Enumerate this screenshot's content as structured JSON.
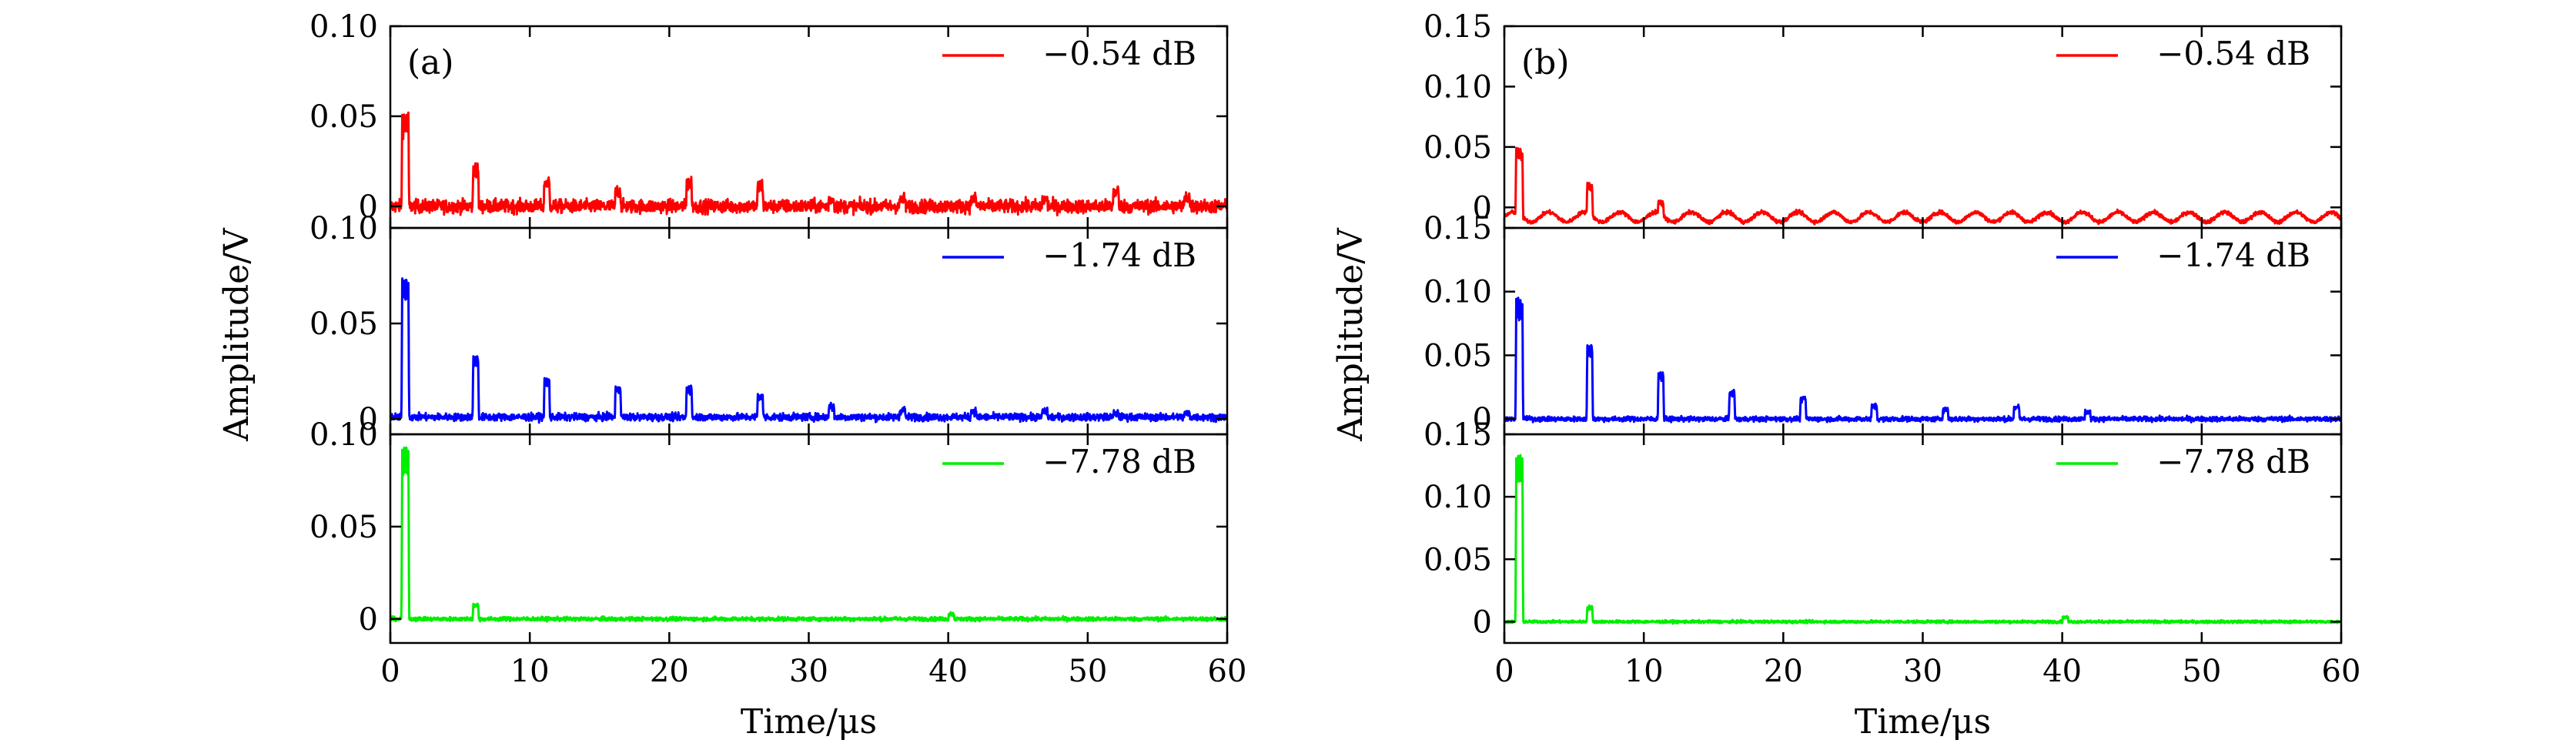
{
  "chart_data": [
    {
      "type": "line",
      "panel_label": "(a)",
      "xlabel": "Time/μs",
      "ylabel": "Amplitude/V",
      "xlim": [
        0,
        60
      ],
      "xticks": [
        "0",
        "10",
        "20",
        "30",
        "40",
        "50",
        "60"
      ],
      "legend_position": "top-right",
      "subplots": [
        {
          "series": [
            {
              "name": "−0.54 dB",
              "color": "#ff0000"
            }
          ],
          "ylim": [
            -0.012,
            0.1
          ],
          "yticks": [
            {
              "value": 0,
              "label": "0"
            },
            {
              "value": 0.05,
              "label": "0.05"
            },
            {
              "value": 0.1,
              "label": "0.10"
            }
          ],
          "pulse_times": [
            0.8,
            5.9,
            11.0,
            16.1,
            21.2,
            26.3,
            31.4,
            36.5,
            41.6,
            46.7,
            51.8,
            56.9
          ],
          "pulse_peaks": [
            0.05,
            0.022,
            0.014,
            0.009,
            0.014,
            0.012,
            0.004,
            0.004,
            0.004,
            0.004,
            0.009,
            0.006
          ],
          "baseline": 0.0,
          "noise": 0.0035,
          "ripple_amplitude": 0.0
        },
        {
          "series": [
            {
              "name": "−1.74 dB",
              "color": "#0000ff"
            }
          ],
          "ylim": [
            -0.008,
            0.1
          ],
          "yticks": [
            {
              "value": 0,
              "label": "0"
            },
            {
              "value": 0.05,
              "label": "0.05"
            },
            {
              "value": 0.1,
              "label": "0.10"
            }
          ],
          "pulse_times": [
            0.8,
            5.9,
            11.0,
            16.1,
            21.2,
            26.3,
            31.4,
            36.5,
            41.6,
            46.7,
            51.8,
            56.9
          ],
          "pulse_peaks": [
            0.073,
            0.032,
            0.02,
            0.016,
            0.016,
            0.012,
            0.006,
            0.004,
            0.003,
            0.003,
            0.002,
            0.002
          ],
          "baseline": 0.001,
          "noise": 0.0018,
          "ripple_amplitude": 0.0
        },
        {
          "series": [
            {
              "name": "−7.78 dB",
              "color": "#00ee00"
            }
          ],
          "ylim": [
            -0.013,
            0.1
          ],
          "yticks": [
            {
              "value": 0,
              "label": "0"
            },
            {
              "value": 0.05,
              "label": "0.05"
            },
            {
              "value": 0.1,
              "label": "0.10"
            }
          ],
          "pulse_times": [
            0.8,
            5.9,
            40.0
          ],
          "pulse_peaks": [
            0.093,
            0.008,
            0.003
          ],
          "baseline": 0.0,
          "noise": 0.001,
          "ripple_amplitude": 0.0
        }
      ]
    },
    {
      "type": "line",
      "panel_label": "(b)",
      "xlabel": "Time/μs",
      "ylabel": "Amplitude/V",
      "xlim": [
        0,
        60
      ],
      "xticks": [
        "0",
        "10",
        "20",
        "30",
        "40",
        "50",
        "60"
      ],
      "legend_position": "top-right",
      "subplots": [
        {
          "series": [
            {
              "name": "−0.54 dB",
              "color": "#ff0000"
            }
          ],
          "ylim": [
            -0.017,
            0.15
          ],
          "yticks": [
            {
              "value": 0,
              "label": "0"
            },
            {
              "value": 0.05,
              "label": "0.05"
            },
            {
              "value": 0.1,
              "label": "0.10"
            },
            {
              "value": 0.15,
              "label": "0.15"
            }
          ],
          "pulse_times": [
            0.8,
            5.9,
            11.0
          ],
          "pulse_peaks": [
            0.055,
            0.025,
            0.01
          ],
          "baseline": -0.008,
          "noise": 0.0015,
          "ripple_amplitude": 0.004
        },
        {
          "series": [
            {
              "name": "−1.74 dB",
              "color": "#0000ff"
            }
          ],
          "ylim": [
            -0.012,
            0.15
          ],
          "yticks": [
            {
              "value": 0,
              "label": "0"
            },
            {
              "value": 0.05,
              "label": "0.05"
            },
            {
              "value": 0.1,
              "label": "0.10"
            },
            {
              "value": 0.15,
              "label": "0.15"
            }
          ],
          "pulse_times": [
            0.8,
            5.9,
            11.0,
            16.1,
            21.2,
            26.3,
            31.4,
            36.5,
            41.6
          ],
          "pulse_peaks": [
            0.093,
            0.058,
            0.037,
            0.022,
            0.017,
            0.011,
            0.008,
            0.01,
            0.006
          ],
          "baseline": 0.0,
          "noise": 0.0018,
          "ripple_amplitude": 0.0
        },
        {
          "series": [
            {
              "name": "−7.78 dB",
              "color": "#00ee00"
            }
          ],
          "ylim": [
            -0.017,
            0.15
          ],
          "yticks": [
            {
              "value": 0,
              "label": "0"
            },
            {
              "value": 0.05,
              "label": "0.05"
            },
            {
              "value": 0.1,
              "label": "0.10"
            },
            {
              "value": 0.15,
              "label": "0.15"
            }
          ],
          "pulse_times": [
            0.8,
            5.9,
            40.0
          ],
          "pulse_peaks": [
            0.133,
            0.012,
            0.004
          ],
          "baseline": 0.0,
          "noise": 0.001,
          "ripple_amplitude": 0.0
        }
      ]
    }
  ]
}
